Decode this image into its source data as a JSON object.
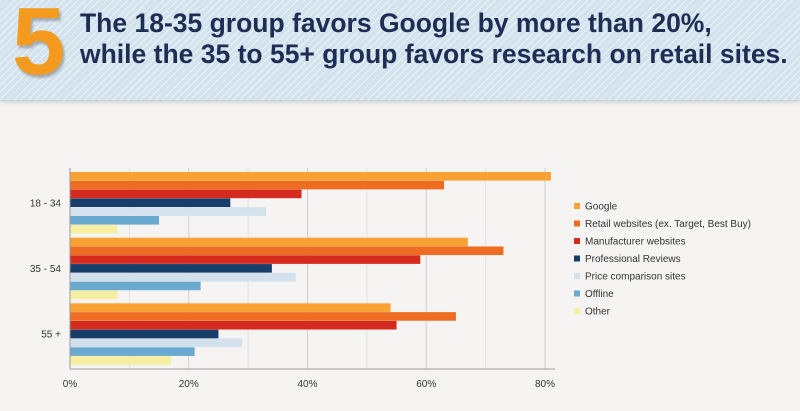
{
  "header": {
    "number": "5",
    "headline_line1": "The 18-35 group favors Google by more than 20%,",
    "headline_line2": "while the 35 to 55+ group favors research on retail sites."
  },
  "chart_data": {
    "type": "bar",
    "orientation": "horizontal",
    "categories": [
      "18 - 34",
      "35 - 54",
      "55 +"
    ],
    "series": [
      {
        "name": "Google",
        "color": "#f7a233",
        "values": [
          81,
          67,
          54
        ]
      },
      {
        "name": "Retail websites (ex. Target, Best Buy)",
        "color": "#ef6c23",
        "values": [
          63,
          73,
          65
        ]
      },
      {
        "name": "Manufacturer websites",
        "color": "#d52b1e",
        "values": [
          39,
          59,
          55
        ]
      },
      {
        "name": "Professional Reviews",
        "color": "#173d6b",
        "values": [
          27,
          34,
          25
        ]
      },
      {
        "name": "Price comparison sites",
        "color": "#d2e1ec",
        "values": [
          33,
          38,
          29
        ]
      },
      {
        "name": "Offline",
        "color": "#6aa9d0",
        "values": [
          15,
          22,
          21
        ]
      },
      {
        "name": "Other",
        "color": "#f6efa2",
        "values": [
          8,
          8,
          17
        ]
      }
    ],
    "xticks": [
      "0%",
      "20%",
      "40%",
      "60%",
      "80%"
    ],
    "xlim": [
      0,
      80
    ],
    "grid": true,
    "legend_position": "right"
  }
}
